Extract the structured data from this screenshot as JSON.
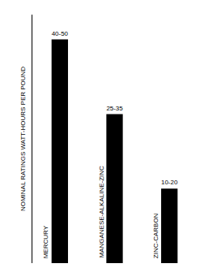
{
  "chart_data": {
    "type": "bar",
    "y_label": "NOMINAL RATINGS WATT-HOURS PER POUND",
    "categories": [
      "MERCURY",
      "MANGANESE-ALKALINE-ZINC",
      "ZINC-CARBON"
    ],
    "values": [
      45,
      30,
      15
    ],
    "value_labels": [
      "40-50",
      "25-35",
      "10-20"
    ],
    "data_labels": true,
    "color": "#000000",
    "ylim": [
      0,
      50
    ],
    "grid": false,
    "tick_labels": false
  }
}
